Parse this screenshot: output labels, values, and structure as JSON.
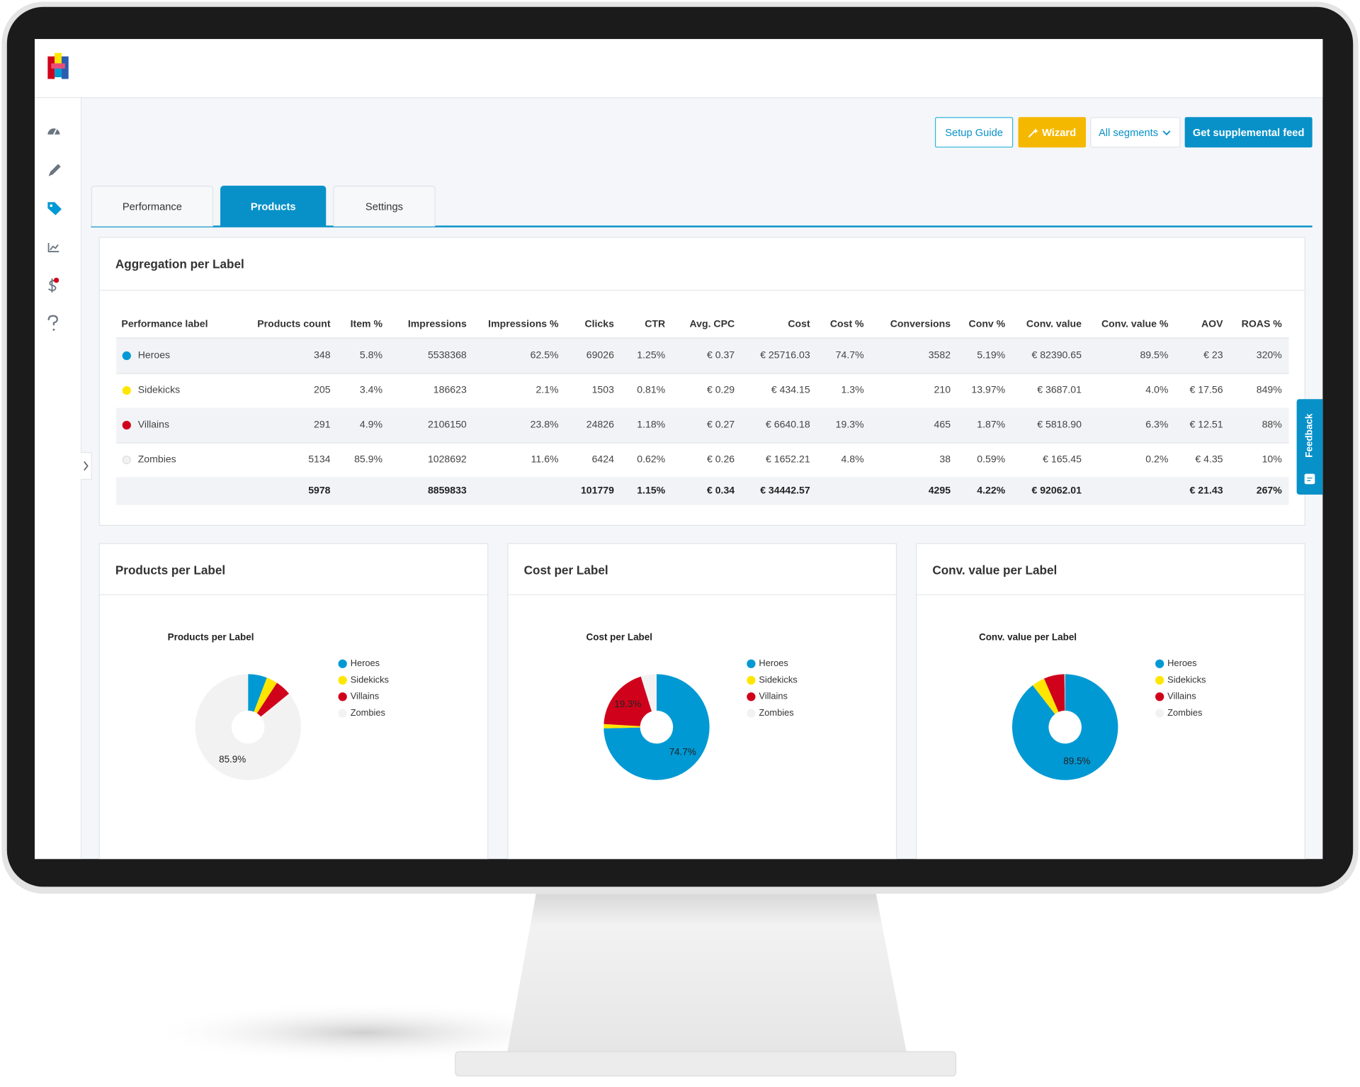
{
  "header": {
    "buttons": [
      "Setup Guide",
      "Wizard",
      "All segments",
      "Get supplemental feed"
    ]
  },
  "feedback": "Feedback",
  "tabs": [
    "Performance",
    "Products",
    "Settings"
  ],
  "table": {
    "title": "Aggregation per Label",
    "columns": [
      "Performance label",
      "Products count",
      "Item %",
      "Impressions",
      "Impressions %",
      "Clicks",
      "CTR",
      "Avg. CPC",
      "Cost",
      "Cost %",
      "Conversions",
      "Conv %",
      "Conv. value",
      "Conv. value %",
      "AOV",
      "ROAS %"
    ],
    "rows": [
      [
        "Heroes",
        "348",
        "5.8%",
        "5538368",
        "62.5%",
        "69026",
        "1.25%",
        "€ 0.37",
        "€ 25716.03",
        "74.7%",
        "3582",
        "5.19%",
        "€ 82390.65",
        "89.5%",
        "€ 23",
        "320%"
      ],
      [
        "Sidekicks",
        "205",
        "3.4%",
        "186623",
        "2.1%",
        "1503",
        "0.81%",
        "€ 0.29",
        "€ 434.15",
        "1.3%",
        "210",
        "13.97%",
        "€ 3687.01",
        "4.0%",
        "€ 17.56",
        "849%"
      ],
      [
        "Villains",
        "291",
        "4.9%",
        "2106150",
        "23.8%",
        "24826",
        "1.18%",
        "€ 0.27",
        "€ 6640.18",
        "19.3%",
        "465",
        "1.87%",
        "€ 5818.90",
        "6.3%",
        "€ 12.51",
        "88%"
      ],
      [
        "Zombies",
        "5134",
        "85.9%",
        "1028692",
        "11.6%",
        "6424",
        "0.62%",
        "€ 0.26",
        "€ 1652.21",
        "4.8%",
        "38",
        "0.59%",
        "€ 165.45",
        "0.2%",
        "€ 4.35",
        "10%"
      ]
    ],
    "total": [
      null,
      "5978",
      null,
      "8859833",
      null,
      "101779",
      "1.15%",
      "€ 0.34",
      "€ 34442.57",
      null,
      "4295",
      "4.22%",
      "€ 92062.01",
      null,
      "€ 21.43",
      "267%"
    ]
  },
  "panels": [
    {
      "title": "Products per Label"
    },
    {
      "title": "Cost per Label"
    },
    {
      "title": "Conv. value per Label"
    }
  ],
  "chart_data": [
    {
      "type": "pie",
      "title": "Products per Label",
      "categories": [
        "Heroes",
        "Sidekicks",
        "Villains",
        "Zombies"
      ],
      "values": [
        5.8,
        3.4,
        4.9,
        85.9
      ],
      "value_labels": [
        null,
        null,
        null,
        "85.9%"
      ],
      "colors": [
        "#0099d4",
        "#ffe600",
        "#d0021b",
        "#f2f2f2"
      ]
    },
    {
      "type": "pie",
      "title": "Cost per Label",
      "categories": [
        "Heroes",
        "Sidekicks",
        "Villains",
        "Zombies"
      ],
      "values": [
        74.7,
        1.3,
        19.3,
        4.8
      ],
      "value_labels": [
        "74.7%",
        null,
        "19.3%",
        null
      ],
      "colors": [
        "#0099d4",
        "#ffe600",
        "#d0021b",
        "#f2f2f2"
      ]
    },
    {
      "type": "pie",
      "title": "Conv. value per Label",
      "categories": [
        "Heroes",
        "Sidekicks",
        "Villains",
        "Zombies"
      ],
      "values": [
        89.5,
        4.0,
        6.3,
        0.2
      ],
      "value_labels": [
        "89.5%",
        null,
        null,
        null
      ],
      "colors": [
        "#0099d4",
        "#ffe600",
        "#d0021b",
        "#f2f2f2"
      ]
    }
  ]
}
